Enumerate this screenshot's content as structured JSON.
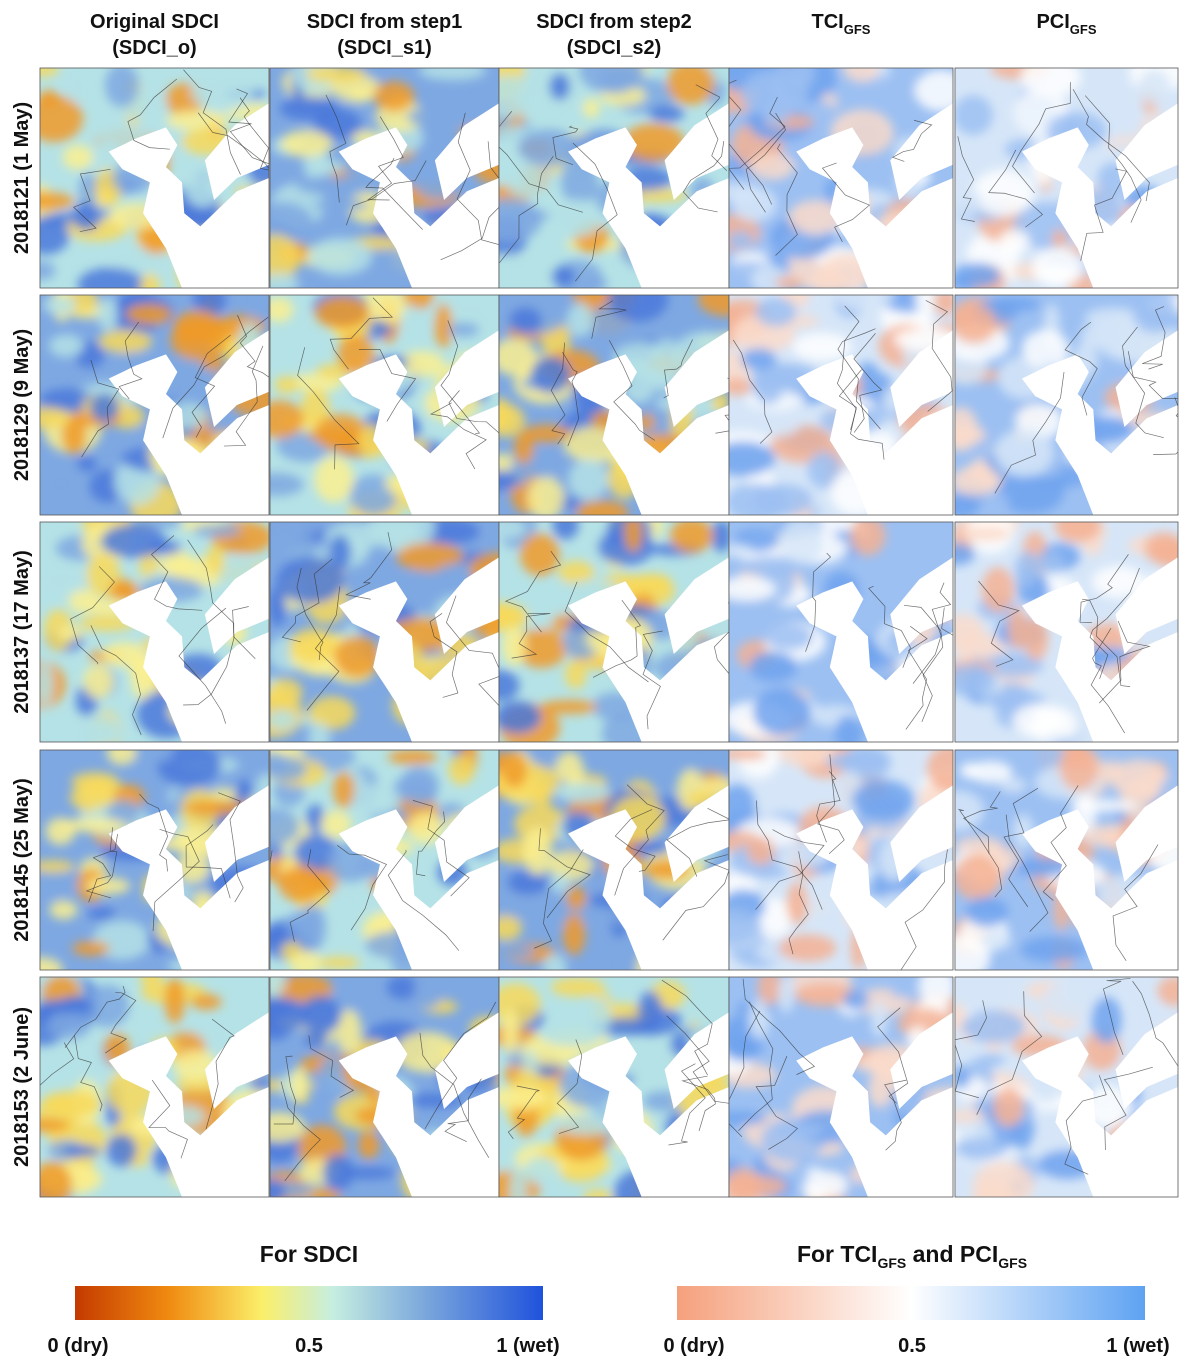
{
  "columns": [
    {
      "title": "Original SDCI",
      "subtitle": "(SDCI_o)"
    },
    {
      "title": "SDCI from step1",
      "subtitle": "(SDCI_s1)"
    },
    {
      "title": "SDCI from step2",
      "subtitle": "(SDCI_s2)"
    },
    {
      "title": "TCI",
      "sub": "GFS"
    },
    {
      "title": "PCI",
      "sub": "GFS"
    }
  ],
  "rows": [
    "2018121 (1 May)",
    "2018129 (9 May)",
    "2018137 (17 May)",
    "2018145 (25 May)",
    "2018153 (2 June)"
  ],
  "legends": [
    {
      "title": "For SDCI",
      "ticks": [
        "0 (dry)",
        "0.5",
        "1 (wet)"
      ]
    },
    {
      "title": {
        "prefix": "For TCI",
        "sub1": "GFS",
        "mid": " and PCI",
        "sub2": "GFS"
      },
      "ticks": [
        "0 (dry)",
        "0.5",
        "1 (wet)"
      ]
    }
  ]
}
